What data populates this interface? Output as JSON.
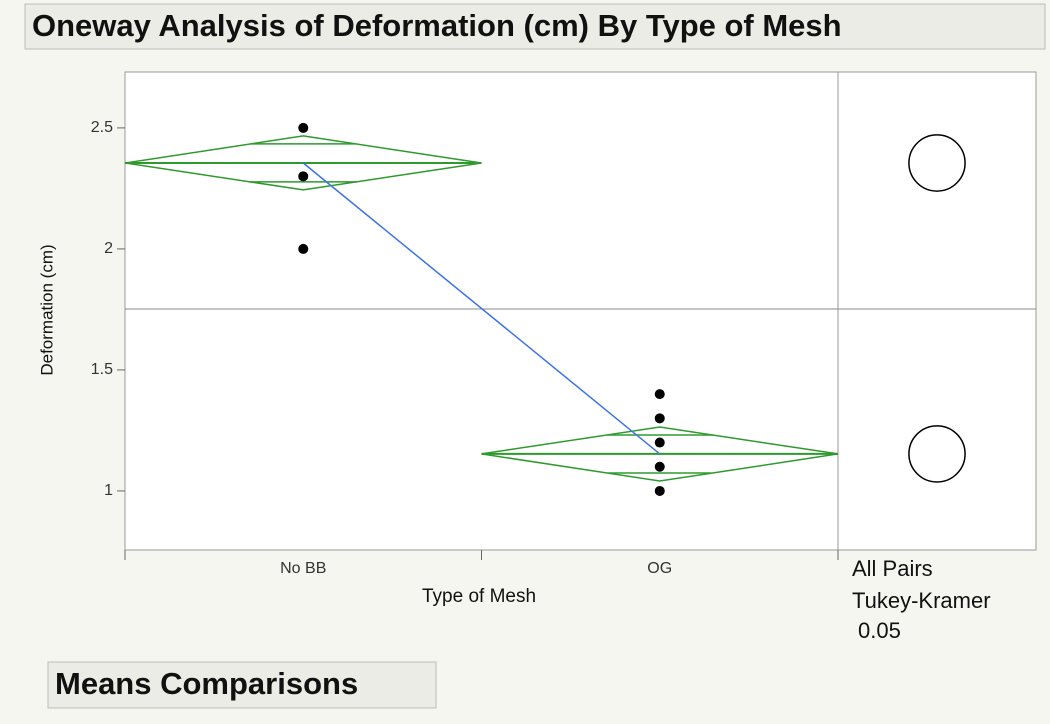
{
  "chart_data": {
    "type": "oneway",
    "title": "Oneway Analysis of Deformation (cm) By Type of Mesh",
    "x_label": "Type of Mesh",
    "y_label": "Deformation (cm)",
    "categories": [
      "No BB",
      "OG"
    ],
    "points": [
      [
        2.5,
        2.3,
        2.0
      ],
      [
        1.4,
        1.3,
        1.2,
        1.1,
        1.0
      ]
    ],
    "means": [
      2.355,
      1.153
    ],
    "ci_lower": [
      2.244,
      1.041
    ],
    "ci_upper": [
      2.467,
      1.264
    ],
    "overlap_lower": [
      2.277,
      1.074
    ],
    "overlap_upper": [
      2.434,
      1.231
    ],
    "grand_mean": 1.752,
    "circle_radius": 0.116,
    "compare_method": [
      "All Pairs",
      "Tukey-Kramer"
    ],
    "alpha": 0.05,
    "ylim": [
      0.756,
      2.731
    ],
    "yticks": [
      {
        "value": 1,
        "label": "1"
      },
      1.5,
      2,
      2.5
    ],
    "diamond_color": "#2e9a2e",
    "means_line_color": "#3d73e6",
    "point_color": "#000000"
  },
  "section_title": "Means Comparisons"
}
